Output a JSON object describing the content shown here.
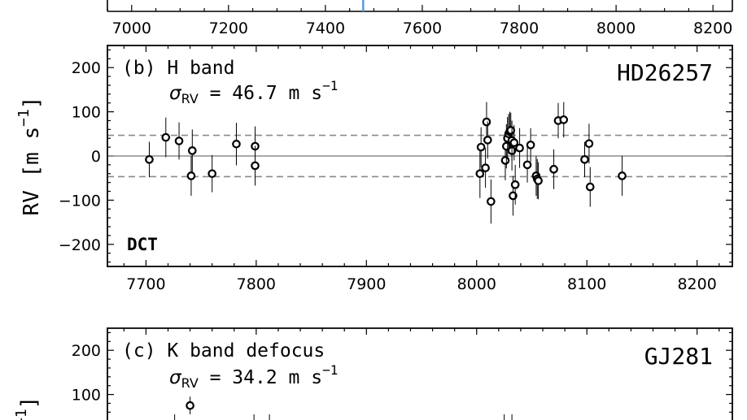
{
  "chart_data": [
    {
      "type": "scatter",
      "panel": "top (cropped)",
      "x_ticks": [
        7000,
        7200,
        7400,
        7600,
        7800,
        8000,
        8200
      ],
      "xlim": [
        6950,
        8240
      ],
      "highlight_x": 7478,
      "highlight_color": "#5b9bd5"
    },
    {
      "type": "scatter",
      "panel_label": "(b) H band",
      "sigma_symbol": "σ",
      "sigma_sub": "RV",
      "sigma_value": " = 46.7 m s",
      "sigma_exp": "−1",
      "star": "HD26257",
      "instrument": "DCT",
      "ylabel_main": "RV [m s",
      "ylabel_exp": "−1",
      "ylabel_close": "]",
      "xlim": [
        7665,
        8232
      ],
      "ylim": [
        -250,
        250
      ],
      "x_ticks": [
        7700,
        7800,
        7900,
        8000,
        8100,
        8200
      ],
      "y_ticks": [
        200,
        100,
        0,
        -100,
        -200
      ],
      "y_tick_labels": [
        "200",
        "100",
        "0",
        "−100",
        "−200"
      ],
      "rms": 46.7,
      "points": [
        {
          "x": 7703,
          "y": -8,
          "e": 40
        },
        {
          "x": 7718,
          "y": 42,
          "e": 45
        },
        {
          "x": 7730,
          "y": 34,
          "e": 42
        },
        {
          "x": 7741,
          "y": -45,
          "e": 45
        },
        {
          "x": 7742,
          "y": 12,
          "e": 48
        },
        {
          "x": 7760,
          "y": -40,
          "e": 42
        },
        {
          "x": 7782,
          "y": 27,
          "e": 48
        },
        {
          "x": 7799,
          "y": 22,
          "e": 45
        },
        {
          "x": 7799,
          "y": -22,
          "e": 45
        },
        {
          "x": 8003,
          "y": -40,
          "e": 55
        },
        {
          "x": 8004,
          "y": 20,
          "e": 45
        },
        {
          "x": 8008,
          "y": -27,
          "e": 45
        },
        {
          "x": 8009,
          "y": 77,
          "e": 45
        },
        {
          "x": 8010,
          "y": 36,
          "e": 42
        },
        {
          "x": 8013,
          "y": -103,
          "e": 50
        },
        {
          "x": 8026,
          "y": -10,
          "e": 45
        },
        {
          "x": 8027,
          "y": 22,
          "e": 50
        },
        {
          "x": 8028,
          "y": 40,
          "e": 48
        },
        {
          "x": 8029,
          "y": 50,
          "e": 45
        },
        {
          "x": 8030,
          "y": 55,
          "e": 45
        },
        {
          "x": 8031,
          "y": 58,
          "e": 40
        },
        {
          "x": 8032,
          "y": 12,
          "e": 45
        },
        {
          "x": 8032,
          "y": 35,
          "e": 45
        },
        {
          "x": 8033,
          "y": -90,
          "e": 45
        },
        {
          "x": 8034,
          "y": 30,
          "e": 40
        },
        {
          "x": 8035,
          "y": -65,
          "e": 45
        },
        {
          "x": 8039,
          "y": 18,
          "e": 45
        },
        {
          "x": 8046,
          "y": -20,
          "e": 40
        },
        {
          "x": 8049,
          "y": 25,
          "e": 38
        },
        {
          "x": 8054,
          "y": -45,
          "e": 45
        },
        {
          "x": 8055,
          "y": -52,
          "e": 45
        },
        {
          "x": 8056,
          "y": -56,
          "e": 42
        },
        {
          "x": 8070,
          "y": -30,
          "e": 45
        },
        {
          "x": 8074,
          "y": 80,
          "e": 40
        },
        {
          "x": 8079,
          "y": 82,
          "e": 40
        },
        {
          "x": 8098,
          "y": -8,
          "e": 40
        },
        {
          "x": 8102,
          "y": 28,
          "e": 45
        },
        {
          "x": 8103,
          "y": -70,
          "e": 45
        },
        {
          "x": 8132,
          "y": -45,
          "e": 45
        }
      ]
    },
    {
      "type": "scatter",
      "panel_label": "(c) K band defocus",
      "sigma_symbol": "σ",
      "sigma_sub": "RV",
      "sigma_value": " = 34.2 m s",
      "sigma_exp": "−1",
      "star": "GJ281",
      "ylabel_exp": "−1",
      "ylabel_close": "]",
      "ylim": [
        -250,
        250
      ],
      "y_ticks": [
        200,
        100
      ],
      "y_tick_labels": [
        "200",
        "100"
      ],
      "points": [
        {
          "x": 7740,
          "y": 75,
          "e": 20
        }
      ]
    }
  ]
}
